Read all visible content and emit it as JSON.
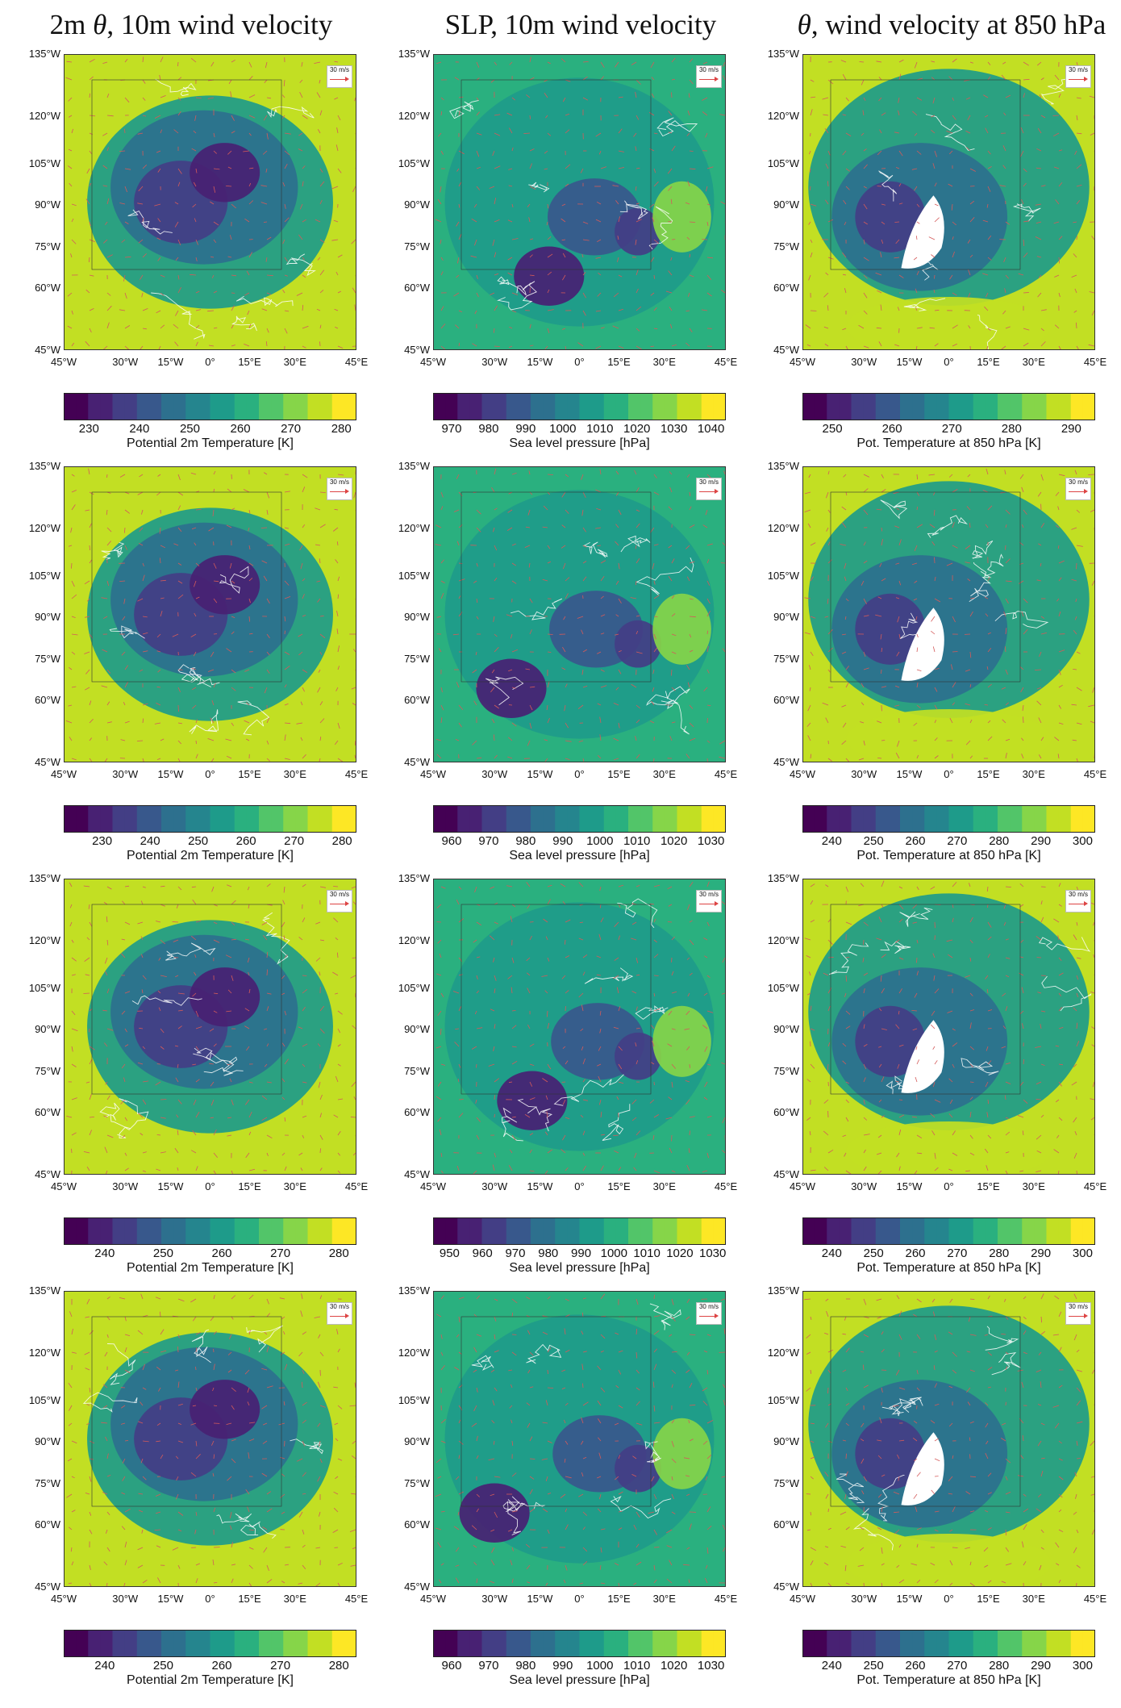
{
  "titles": [
    {
      "pre": "2m ",
      "theta": "θ",
      "post": ", 10m wind velocity"
    },
    {
      "pre": "SLP, 10m wind velocity",
      "theta": "",
      "post": ""
    },
    {
      "pre": "",
      "theta": "θ",
      "post": ", wind velocity at 850 hPa"
    }
  ],
  "lon_labels": [
    "45°W",
    "30°W",
    "15°W",
    "0°",
    "15°E",
    "30°E",
    "45°E"
  ],
  "lat_labels": [
    "135°W",
    "120°W",
    "105°W",
    "90°W",
    "75°W",
    "60°W",
    "45°W"
  ],
  "wind_legend_label": "30 m/s",
  "colormap": [
    "#440154",
    "#482173",
    "#433e85",
    "#38588c",
    "#2d708e",
    "#25858e",
    "#1e9b8a",
    "#2ab07f",
    "#52c569",
    "#86d549",
    "#c2df23",
    "#fde725"
  ],
  "colorbars": [
    [
      {
        "label": "Potential 2m Temperature [K]",
        "ticks": [
          "230",
          "240",
          "250",
          "260",
          "270",
          "280"
        ],
        "range": [
          225,
          283
        ]
      },
      {
        "label": "Sea level pressure [hPa]",
        "ticks": [
          "970",
          "980",
          "990",
          "1000",
          "1010",
          "1020",
          "1030",
          "1040"
        ],
        "range": [
          965,
          1044
        ]
      },
      {
        "label": "Pot. Temperature at 850 hPa [K]",
        "ticks": [
          "250",
          "260",
          "270",
          "280",
          "290"
        ],
        "range": [
          245,
          294
        ]
      }
    ],
    [
      {
        "label": "Potential 2m Temperature [K]",
        "ticks": [
          "230",
          "240",
          "250",
          "260",
          "270",
          "280"
        ],
        "range": [
          222,
          283
        ]
      },
      {
        "label": "Sea level pressure [hPa]",
        "ticks": [
          "960",
          "970",
          "980",
          "990",
          "1000",
          "1010",
          "1020",
          "1030"
        ],
        "range": [
          955,
          1034
        ]
      },
      {
        "label": "Pot. Temperature at 850 hPa [K]",
        "ticks": [
          "240",
          "250",
          "260",
          "270",
          "280",
          "290",
          "300"
        ],
        "range": [
          233,
          303
        ]
      }
    ],
    [
      {
        "label": "Potential 2m Temperature [K]",
        "ticks": [
          "240",
          "250",
          "260",
          "270",
          "280"
        ],
        "range": [
          233,
          283
        ]
      },
      {
        "label": "Sea level pressure [hPa]",
        "ticks": [
          "950",
          "960",
          "970",
          "980",
          "990",
          "1000",
          "1010",
          "1020",
          "1030"
        ],
        "range": [
          945,
          1034
        ]
      },
      {
        "label": "Pot. Temperature at 850 hPa [K]",
        "ticks": [
          "240",
          "250",
          "260",
          "270",
          "280",
          "290",
          "300"
        ],
        "range": [
          233,
          303
        ]
      }
    ],
    [
      {
        "label": "Potential 2m Temperature [K]",
        "ticks": [
          "240",
          "250",
          "260",
          "270",
          "280"
        ],
        "range": [
          233,
          283
        ]
      },
      {
        "label": "Sea level pressure [hPa]",
        "ticks": [
          "960",
          "970",
          "980",
          "990",
          "1000",
          "1010",
          "1020",
          "1030"
        ],
        "range": [
          955,
          1034
        ]
      },
      {
        "label": "Pot. Temperature at 850 hPa [K]",
        "ticks": [
          "240",
          "250",
          "260",
          "270",
          "280",
          "290",
          "300"
        ],
        "range": [
          233,
          303
        ]
      }
    ]
  ],
  "colors": {
    "land_outline": "#ffffff",
    "wind_arrow": "#d45a5a",
    "missing": "#ffffff",
    "frame": "#333333"
  }
}
